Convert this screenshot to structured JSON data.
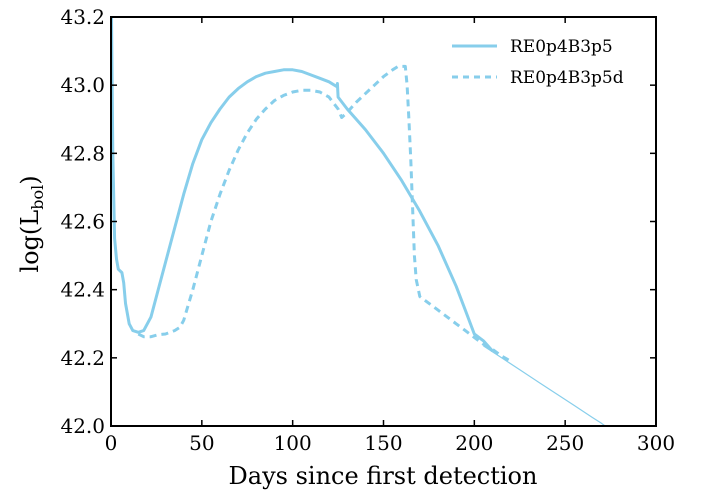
{
  "chart_data": {
    "type": "line",
    "xlabel": "Days since first detection",
    "ylabel_main": "log(L",
    "ylabel_sub": "bol",
    "ylabel_close": ")",
    "xlim": [
      0,
      300
    ],
    "ylim": [
      42.0,
      43.2
    ],
    "xticks": [
      0,
      50,
      100,
      150,
      200,
      250,
      300
    ],
    "yticks": [
      42.0,
      42.2,
      42.4,
      42.6,
      42.8,
      43.0,
      43.2
    ],
    "ytick_labels": [
      "42.0",
      "42.2",
      "42.4",
      "42.6",
      "42.8",
      "43.0",
      "43.2"
    ],
    "grid": false,
    "legend_position": "top-right",
    "series_color": "#87CEEB",
    "series": [
      {
        "name": "RE0p4B3p5",
        "style": "solid",
        "x": [
          0.3,
          1,
          2,
          3,
          4,
          6,
          7,
          8,
          10,
          12,
          15,
          18,
          22,
          26,
          30,
          35,
          40,
          45,
          50,
          55,
          60,
          65,
          70,
          75,
          80,
          85,
          90,
          95,
          100,
          105,
          110,
          115,
          120,
          124.5,
          124.6,
          125,
          130,
          140,
          150,
          160,
          170,
          180,
          190,
          195,
          200,
          205,
          210
        ],
        "y": [
          43.2,
          42.8,
          42.55,
          42.49,
          42.46,
          42.45,
          42.42,
          42.36,
          42.3,
          42.28,
          42.275,
          42.28,
          42.32,
          42.4,
          42.48,
          42.58,
          42.68,
          42.77,
          42.84,
          42.89,
          42.93,
          42.965,
          42.99,
          43.01,
          43.025,
          43.035,
          43.04,
          43.045,
          43.045,
          43.04,
          43.03,
          43.02,
          43.01,
          42.995,
          43.005,
          42.965,
          42.93,
          42.87,
          42.8,
          42.72,
          42.63,
          42.53,
          42.41,
          42.34,
          42.27,
          42.25,
          42.22
        ]
      },
      {
        "name": "RE0p4B3p5d",
        "style": "dashed",
        "x": [
          15,
          18,
          22,
          26,
          30,
          35,
          38,
          40,
          45,
          50,
          55,
          60,
          65,
          70,
          75,
          80,
          85,
          90,
          95,
          100,
          105,
          110,
          115,
          120,
          125,
          127,
          130,
          135,
          140,
          145,
          150,
          155,
          158,
          162,
          163,
          164,
          165,
          166,
          167,
          168,
          170,
          175,
          180,
          185,
          190,
          195,
          200,
          205,
          210,
          215,
          220
        ],
        "y": [
          42.27,
          42.262,
          42.262,
          42.268,
          42.27,
          42.28,
          42.29,
          42.31,
          42.4,
          42.5,
          42.6,
          42.68,
          42.75,
          42.81,
          42.86,
          42.9,
          42.93,
          42.955,
          42.97,
          42.98,
          42.985,
          42.985,
          42.98,
          42.965,
          42.93,
          42.905,
          42.92,
          42.95,
          42.975,
          43.0,
          43.025,
          43.045,
          43.055,
          43.055,
          43.0,
          42.9,
          42.78,
          42.64,
          42.5,
          42.43,
          42.38,
          42.36,
          42.34,
          42.32,
          42.3,
          42.28,
          42.26,
          42.24,
          42.225,
          42.205,
          42.19
        ]
      },
      {
        "name": "",
        "style": "thin",
        "x": [
          205,
          215,
          225,
          235,
          245,
          255,
          265,
          270,
          272
        ],
        "y": [
          42.235,
          42.2,
          42.165,
          42.13,
          42.095,
          42.06,
          42.025,
          42.008,
          42.0
        ]
      }
    ]
  }
}
